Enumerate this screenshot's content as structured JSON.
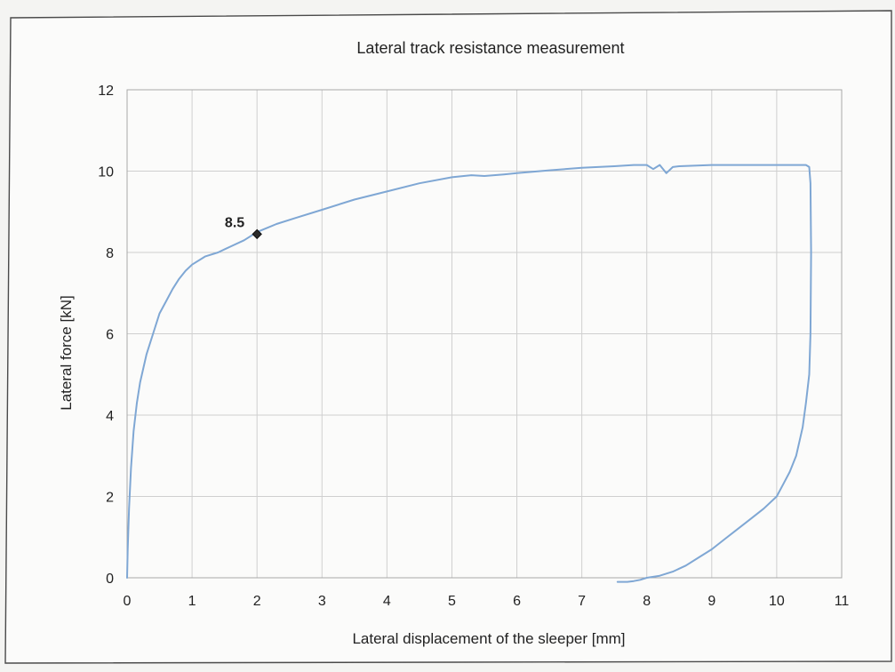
{
  "chart_data": {
    "type": "line",
    "title": "Lateral track resistance measurement",
    "xlabel": "Lateral displacement of the sleeper [mm]",
    "ylabel": "Lateral force [kN]",
    "xlim": [
      0,
      11
    ],
    "ylim": [
      0,
      12
    ],
    "xticks": [
      "0",
      "1",
      "2",
      "3",
      "4",
      "5",
      "6",
      "7",
      "8",
      "9",
      "10",
      "11"
    ],
    "yticks": [
      "0",
      "2",
      "4",
      "6",
      "8",
      "10",
      "12"
    ],
    "grid": true,
    "legend": "none",
    "series": [
      {
        "color": "#7fa7d4",
        "x": [
          0,
          0.01,
          0.03,
          0.06,
          0.1,
          0.15,
          0.2,
          0.3,
          0.4,
          0.5,
          0.6,
          0.7,
          0.8,
          0.9,
          1.0,
          1.2,
          1.4,
          1.6,
          1.8,
          2.0,
          2.3,
          2.6,
          3.0,
          3.5,
          4.0,
          4.5,
          5.0,
          5.3,
          5.5,
          5.8,
          6.0,
          6.5,
          7.0,
          7.5,
          7.8,
          8.0,
          8.1,
          8.2,
          8.3,
          8.4,
          8.5,
          9.0,
          9.5,
          10.0,
          10.3,
          10.45,
          10.5,
          10.52,
          10.53,
          10.52,
          10.5,
          10.45,
          10.4,
          10.3,
          10.2,
          10.1,
          10.0,
          9.8,
          9.6,
          9.4,
          9.2,
          9.0,
          8.8,
          8.6,
          8.4,
          8.2,
          8.0,
          7.9,
          7.8,
          7.7,
          7.6,
          7.55
        ],
        "y": [
          0,
          0.7,
          1.7,
          2.7,
          3.6,
          4.3,
          4.8,
          5.5,
          6.0,
          6.5,
          6.8,
          7.1,
          7.35,
          7.55,
          7.7,
          7.9,
          8.0,
          8.15,
          8.3,
          8.5,
          8.7,
          8.85,
          9.05,
          9.3,
          9.5,
          9.7,
          9.85,
          9.9,
          9.88,
          9.92,
          9.95,
          10.02,
          10.08,
          10.12,
          10.15,
          10.15,
          10.05,
          10.15,
          9.95,
          10.1,
          10.12,
          10.15,
          10.15,
          10.15,
          10.15,
          10.15,
          10.1,
          9.7,
          8.0,
          6.0,
          5.0,
          4.3,
          3.7,
          3.0,
          2.6,
          2.3,
          2.0,
          1.7,
          1.45,
          1.2,
          0.95,
          0.7,
          0.5,
          0.3,
          0.15,
          0.05,
          0.0,
          -0.05,
          -0.08,
          -0.1,
          -0.1,
          -0.1
        ]
      }
    ],
    "annotations": [
      {
        "text": "8.5",
        "x": 2.0,
        "y": 8.45
      }
    ]
  }
}
